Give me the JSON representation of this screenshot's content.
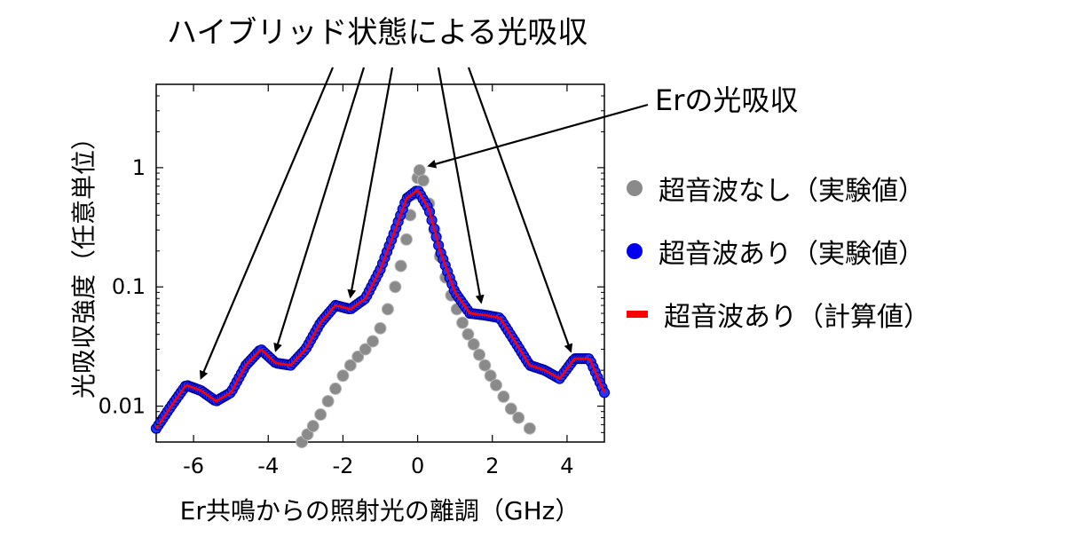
{
  "chart_data": {
    "type": "scatter",
    "title": "",
    "xlabel": "Er共鳴からの照射光の離調（GHz）",
    "ylabel": "光吸収強度（任意単位）",
    "xlim": [
      -7,
      5
    ],
    "ylim": [
      0.005,
      5
    ],
    "yscale": "log",
    "x_ticks": [
      "-6",
      "-4",
      "-2",
      "0",
      "2",
      "4"
    ],
    "y_ticks": [
      "0.01",
      "0.1",
      "1"
    ],
    "legend_position": "right",
    "annotations": {
      "hybrid": "ハイブリッド状態による光吸収",
      "er": "Erの光吸収"
    },
    "series": [
      {
        "name": "超音波なし（実験値）",
        "kind": "scatter",
        "color": "#8a8a8a",
        "points": [
          [
            -3.1,
            0.005
          ],
          [
            -2.95,
            0.0058
          ],
          [
            -2.8,
            0.0068
          ],
          [
            -2.6,
            0.0085
          ],
          [
            -2.4,
            0.011
          ],
          [
            -2.2,
            0.014
          ],
          [
            -2.0,
            0.018
          ],
          [
            -1.8,
            0.022
          ],
          [
            -1.6,
            0.026
          ],
          [
            -1.4,
            0.03
          ],
          [
            -1.2,
            0.035
          ],
          [
            -1.0,
            0.045
          ],
          [
            -0.8,
            0.065
          ],
          [
            -0.6,
            0.1
          ],
          [
            -0.45,
            0.15
          ],
          [
            -0.3,
            0.25
          ],
          [
            -0.2,
            0.4
          ],
          [
            -0.1,
            0.6
          ],
          [
            0.0,
            0.82
          ],
          [
            0.05,
            0.95
          ],
          [
            0.15,
            0.78
          ],
          [
            0.3,
            0.5
          ],
          [
            0.45,
            0.3
          ],
          [
            0.6,
            0.18
          ],
          [
            0.75,
            0.12
          ],
          [
            0.9,
            0.085
          ],
          [
            1.05,
            0.065
          ],
          [
            1.2,
            0.05
          ],
          [
            1.35,
            0.04
          ],
          [
            1.5,
            0.033
          ],
          [
            1.65,
            0.027
          ],
          [
            1.8,
            0.022
          ],
          [
            1.95,
            0.018
          ],
          [
            2.1,
            0.015
          ],
          [
            2.3,
            0.012
          ],
          [
            2.5,
            0.0095
          ],
          [
            2.7,
            0.008
          ],
          [
            3.0,
            0.0065
          ]
        ]
      },
      {
        "name": "超音波あり（実験値）",
        "kind": "scatter",
        "color": "#0000ee"
      },
      {
        "name": "超音波あり（計算値）",
        "kind": "line",
        "color": "#ff0000",
        "x": [
          -7.0,
          -6.6,
          -6.2,
          -5.8,
          -5.4,
          -5.0,
          -4.6,
          -4.2,
          -3.8,
          -3.4,
          -3.0,
          -2.6,
          -2.2,
          -1.8,
          -1.4,
          -1.0,
          -0.6,
          -0.3,
          0.0,
          0.3,
          0.6,
          1.0,
          1.4,
          1.8,
          2.2,
          2.6,
          3.0,
          3.4,
          3.8,
          4.2,
          4.6,
          5.0
        ],
        "y": [
          0.0065,
          0.01,
          0.015,
          0.0135,
          0.011,
          0.013,
          0.022,
          0.03,
          0.023,
          0.022,
          0.03,
          0.05,
          0.07,
          0.065,
          0.08,
          0.14,
          0.3,
          0.55,
          0.65,
          0.45,
          0.2,
          0.09,
          0.06,
          0.058,
          0.055,
          0.035,
          0.022,
          0.02,
          0.017,
          0.025,
          0.025,
          0.013
        ]
      }
    ]
  }
}
